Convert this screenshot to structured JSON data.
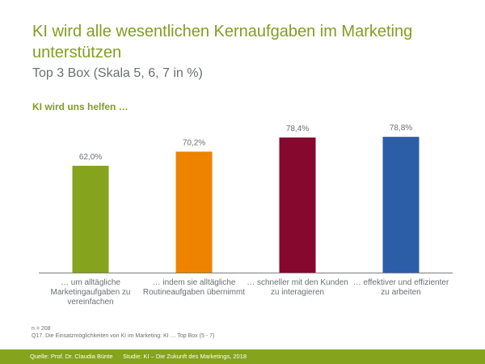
{
  "header": {
    "title": "KI wird alle wesentlichen Kernaufgaben im Marketing unterstützen",
    "subtitle": "Top 3 Box (Skala 5, 6, 7 in %)",
    "section_label": "KI wird uns helfen …"
  },
  "chart_data": {
    "type": "bar",
    "title": "KI wird uns helfen …",
    "xlabel": "",
    "ylabel": "",
    "ylim": [
      0,
      100
    ],
    "grid": false,
    "legend": "none",
    "categories": [
      "… um alltägliche Marketingaufgaben zu vereinfachen",
      "… indem sie alltägliche Routineaufgaben übernimmt",
      "… schneller mit den Kunden zu interagieren",
      "… effektiver und effizienter zu arbeiten"
    ],
    "values": [
      62.0,
      70.2,
      78.4,
      78.8
    ],
    "data_labels": [
      "62,0%",
      "70,2%",
      "78,4%",
      "78,8%"
    ],
    "colors": [
      "#85a31c",
      "#ee8300",
      "#86082f",
      "#2c5ea8"
    ]
  },
  "notes": {
    "sample": "n = 208",
    "question": "Q17. Die Einsatzmöglichkeiten von KI im Marketing: KI … Top Box (5 - 7)"
  },
  "footer": {
    "source": "Quelle: Prof. Dr. Claudia Bünte",
    "study": "Studie: KI – Die Zukunft des Marketings, 2018"
  },
  "colors": {
    "accent": "#7f9f1f",
    "footer_bg": "#85a31c",
    "text_gray": "#6b6f72",
    "axis": "#7a7d80"
  }
}
